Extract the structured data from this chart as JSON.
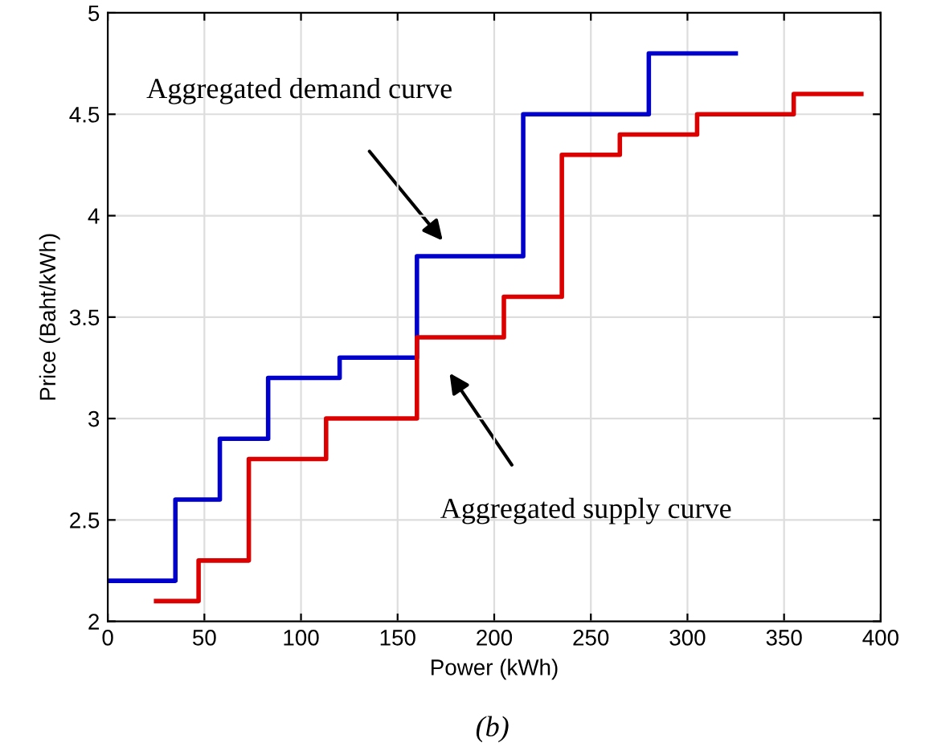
{
  "chart_data": {
    "type": "step",
    "xlabel": "Power (kWh)",
    "ylabel": "Price (Baht/kWh)",
    "series": [
      {
        "color": "#0000cc",
        "x": [
          0,
          35,
          58,
          83,
          120,
          160,
          215,
          280,
          325
        ],
        "values": [
          2.2,
          2.6,
          2.9,
          3.2,
          3.3,
          3.8,
          4.5,
          4.8,
          4.8
        ]
      },
      {
        "color": "#dd0000",
        "x": [
          25,
          47,
          73,
          113,
          160,
          205,
          235,
          265,
          305,
          355,
          390
        ],
        "values": [
          2.1,
          2.3,
          2.8,
          3.0,
          3.4,
          3.6,
          4.3,
          4.4,
          4.5,
          4.6,
          4.6
        ]
      }
    ],
    "xlim": [
      0,
      400
    ],
    "xticks": [
      0,
      50,
      100,
      150,
      200,
      250,
      300,
      350,
      400
    ],
    "ylim": [
      2,
      5
    ],
    "yticks": [
      2,
      2.5,
      3,
      3.5,
      4,
      4.5,
      5
    ],
    "grid": true,
    "line_style": "solid",
    "marker": "none",
    "annotations": [
      "Aggregated demand curve",
      "Aggregated supply curve",
      "(b)"
    ]
  }
}
